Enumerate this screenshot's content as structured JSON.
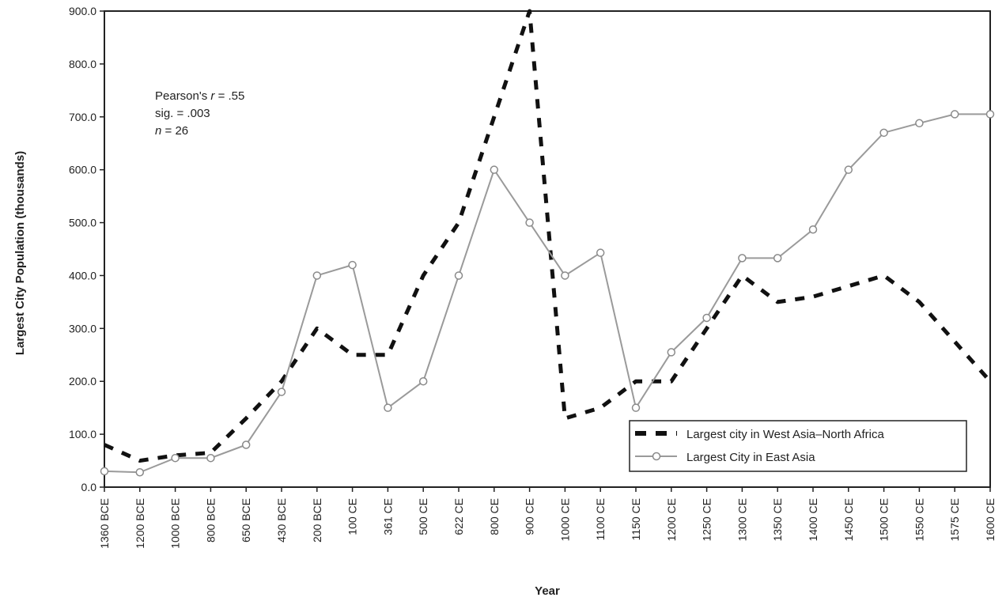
{
  "chart_data": {
    "type": "line",
    "title": "",
    "xlabel": "Year",
    "ylabel": "Largest City Population (thousands)",
    "categories": [
      "1360 BCE",
      "1200 BCE",
      "1000 BCE",
      "800 BCE",
      "650 BCE",
      "430 BCE",
      "200 BCE",
      "100 CE",
      "361 CE",
      "500 CE",
      "622 CE",
      "800 CE",
      "900 CE",
      "1000 CE",
      "1100 CE",
      "1150 CE",
      "1200 CE",
      "1250 CE",
      "1300 CE",
      "1350 CE",
      "1400 CE",
      "1450 CE",
      "1500 CE",
      "1550 CE",
      "1575 CE",
      "1600 CE"
    ],
    "yticks": [
      "0.0",
      "100.0",
      "200.0",
      "300.0",
      "400.0",
      "500.0",
      "600.0",
      "700.0",
      "800.0",
      "900.0"
    ],
    "ylim": [
      0,
      900
    ],
    "grid": false,
    "legend_position": "bottom-right",
    "series": [
      {
        "name": "Largest city in West Asia–North Africa",
        "style": "dashed",
        "color": "#111111",
        "values": [
          80,
          50,
          60,
          65,
          130,
          200,
          300,
          250,
          250,
          400,
          500,
          700,
          900,
          130,
          150,
          200,
          200,
          300,
          400,
          350,
          360,
          380,
          400,
          350,
          275,
          200
        ]
      },
      {
        "name": "Largest City in East Asia",
        "style": "solid-circle",
        "color": "#9a9a9a",
        "values": [
          30,
          28,
          55,
          55,
          80,
          180,
          400,
          420,
          150,
          200,
          400,
          600,
          500,
          400,
          443,
          150,
          255,
          320,
          433,
          433,
          487,
          600,
          670,
          688,
          705,
          705
        ]
      }
    ],
    "annotation": {
      "line1_prefix": "Pearson's ",
      "line1_var": "r",
      "line1_suffix": " = .55",
      "line2": "sig. = .003",
      "line3_var": "n",
      "line3_suffix": " = 26"
    }
  }
}
